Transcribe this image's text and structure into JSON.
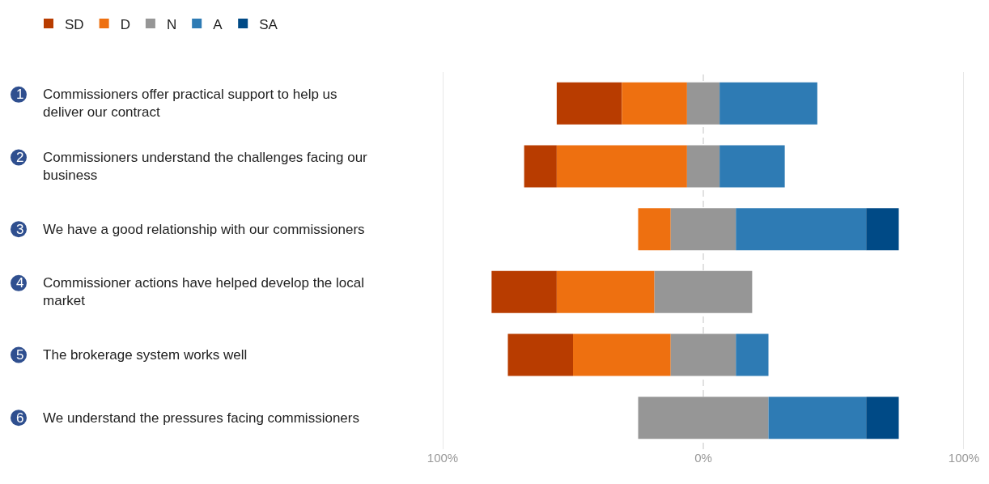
{
  "chart_data": {
    "type": "bar",
    "orientation": "horizontal",
    "categories": [
      "1 Commissioners offer practical support to help us deliver our contract",
      "2 Commissioners understand the challenges facing our business",
      "3 We have a good relationship with our commissioners",
      "4 Commissioner actions have helped develop the local market",
      "5 The brokerage system works well",
      "6 We understand the pressures facing commissioners"
    ],
    "series": [
      {
        "name": "SD",
        "color": "#b83c00",
        "values": [
          25,
          12.5,
          null,
          25,
          25,
          null
        ],
        "base": [
          -56.25,
          -68.75,
          null,
          -81.25,
          -75,
          null
        ]
      },
      {
        "name": "D",
        "color": "#ee7010",
        "values": [
          25,
          50,
          12.5,
          37.5,
          37.5,
          null
        ],
        "base": [
          -31.25,
          -56.25,
          -25,
          -56.25,
          -50,
          null
        ]
      },
      {
        "name": "N",
        "color": "#969696",
        "values": [
          12.5,
          12.5,
          25,
          37.5,
          25,
          50
        ],
        "base": [
          -6.25,
          -6.25,
          -12.5,
          -18.75,
          -12.5,
          -25
        ]
      },
      {
        "name": "A",
        "color": "#2e7bb4",
        "values": [
          37.5,
          25,
          50,
          null,
          12.5,
          37.5
        ],
        "base": [
          6.25,
          6.25,
          12.5,
          null,
          12.5,
          25
        ]
      },
      {
        "name": "SA",
        "color": "#004a86",
        "values": [
          null,
          null,
          12.5,
          null,
          null,
          12.5
        ],
        "base": [
          null,
          null,
          62.5,
          null,
          null,
          62.5
        ]
      }
    ],
    "xlim": [
      -100,
      100
    ],
    "xticks": [
      {
        "value": -100,
        "label": "100%"
      },
      {
        "value": 0,
        "label": "0%"
      },
      {
        "value": 100,
        "label": "100%"
      }
    ],
    "ref_lines": [
      {
        "axis": "x",
        "value": -100,
        "color": "#e0e0e0",
        "line_style": "solid"
      },
      {
        "axis": "x",
        "value": 0,
        "color": "#d8d8d8",
        "line_style": "dashed"
      },
      {
        "axis": "x",
        "value": 100,
        "color": "#e0e0e0",
        "line_style": "solid"
      }
    ],
    "legend": "top left"
  }
}
